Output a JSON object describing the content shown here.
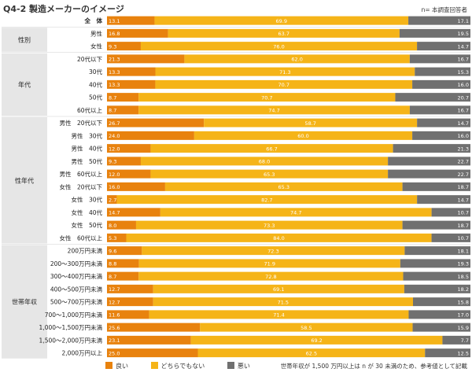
{
  "title": "Q4-2  製造メーカーのイメージ",
  "note": "n= 本調査回答者",
  "footnote": "世帯年収が 1,500 万円以上は n が 30 未満のため、参考値として記載",
  "colors": {
    "good": "#E8820E",
    "neutral": "#F5B418",
    "bad": "#707070",
    "group_bg": "#E6E6E6",
    "grid": "#D0D0D0"
  },
  "chart_data": {
    "type": "bar",
    "orientation": "horizontal",
    "stacked": true,
    "percent": true,
    "legend_position": "bottom",
    "legend": [
      "良い",
      "どちらでもない",
      "悪い"
    ],
    "groups": [
      {
        "label": "",
        "start": 0,
        "count": 1
      },
      {
        "label": "性別",
        "start": 1,
        "count": 2
      },
      {
        "label": "年代",
        "start": 3,
        "count": 5
      },
      {
        "label": "性年代",
        "start": 8,
        "count": 10
      },
      {
        "label": "世帯年収",
        "start": 18,
        "count": 9
      }
    ],
    "categories": [
      "全　体",
      "男性",
      "女性",
      "20代以下",
      "30代",
      "40代",
      "50代",
      "60代以上",
      "男性　20代以下",
      "男性　30代",
      "男性　40代",
      "男性　50代",
      "男性　60代以上",
      "女性　20代以下",
      "女性　30代",
      "女性　40代",
      "女性　50代",
      "女性　60代以上",
      "200万円未満",
      "200～300万円未満",
      "300～400万円未満",
      "400～500万円未満",
      "500～700万円未満",
      "700～1,000万円未満",
      "1,000～1,500万円未満",
      "1,500～2,000万円未満",
      "2,000万円以上"
    ],
    "series": [
      {
        "name": "良い",
        "values": [
          13.1,
          16.8,
          9.3,
          21.3,
          13.3,
          13.3,
          8.7,
          8.7,
          26.7,
          24.0,
          12.0,
          9.3,
          12.0,
          16.0,
          2.7,
          14.7,
          8.0,
          5.3,
          9.6,
          8.8,
          8.7,
          12.7,
          12.7,
          11.6,
          25.6,
          23.1,
          25.0
        ]
      },
      {
        "name": "どちらでもない",
        "values": [
          69.9,
          63.7,
          76.0,
          62.0,
          71.3,
          70.7,
          70.7,
          74.7,
          58.7,
          60.0,
          66.7,
          68.0,
          65.3,
          65.3,
          82.7,
          74.7,
          73.3,
          84.0,
          72.3,
          71.9,
          72.8,
          69.1,
          71.5,
          71.4,
          58.5,
          69.2,
          62.5
        ]
      },
      {
        "name": "悪い",
        "values": [
          17.1,
          19.5,
          14.7,
          16.7,
          15.3,
          16.0,
          20.7,
          16.7,
          14.7,
          16.0,
          21.3,
          22.7,
          22.7,
          18.7,
          14.7,
          10.7,
          18.7,
          10.7,
          18.1,
          19.3,
          18.5,
          18.2,
          15.8,
          17.0,
          15.9,
          7.7,
          12.5
        ]
      }
    ],
    "xlim": [
      0,
      100
    ]
  }
}
